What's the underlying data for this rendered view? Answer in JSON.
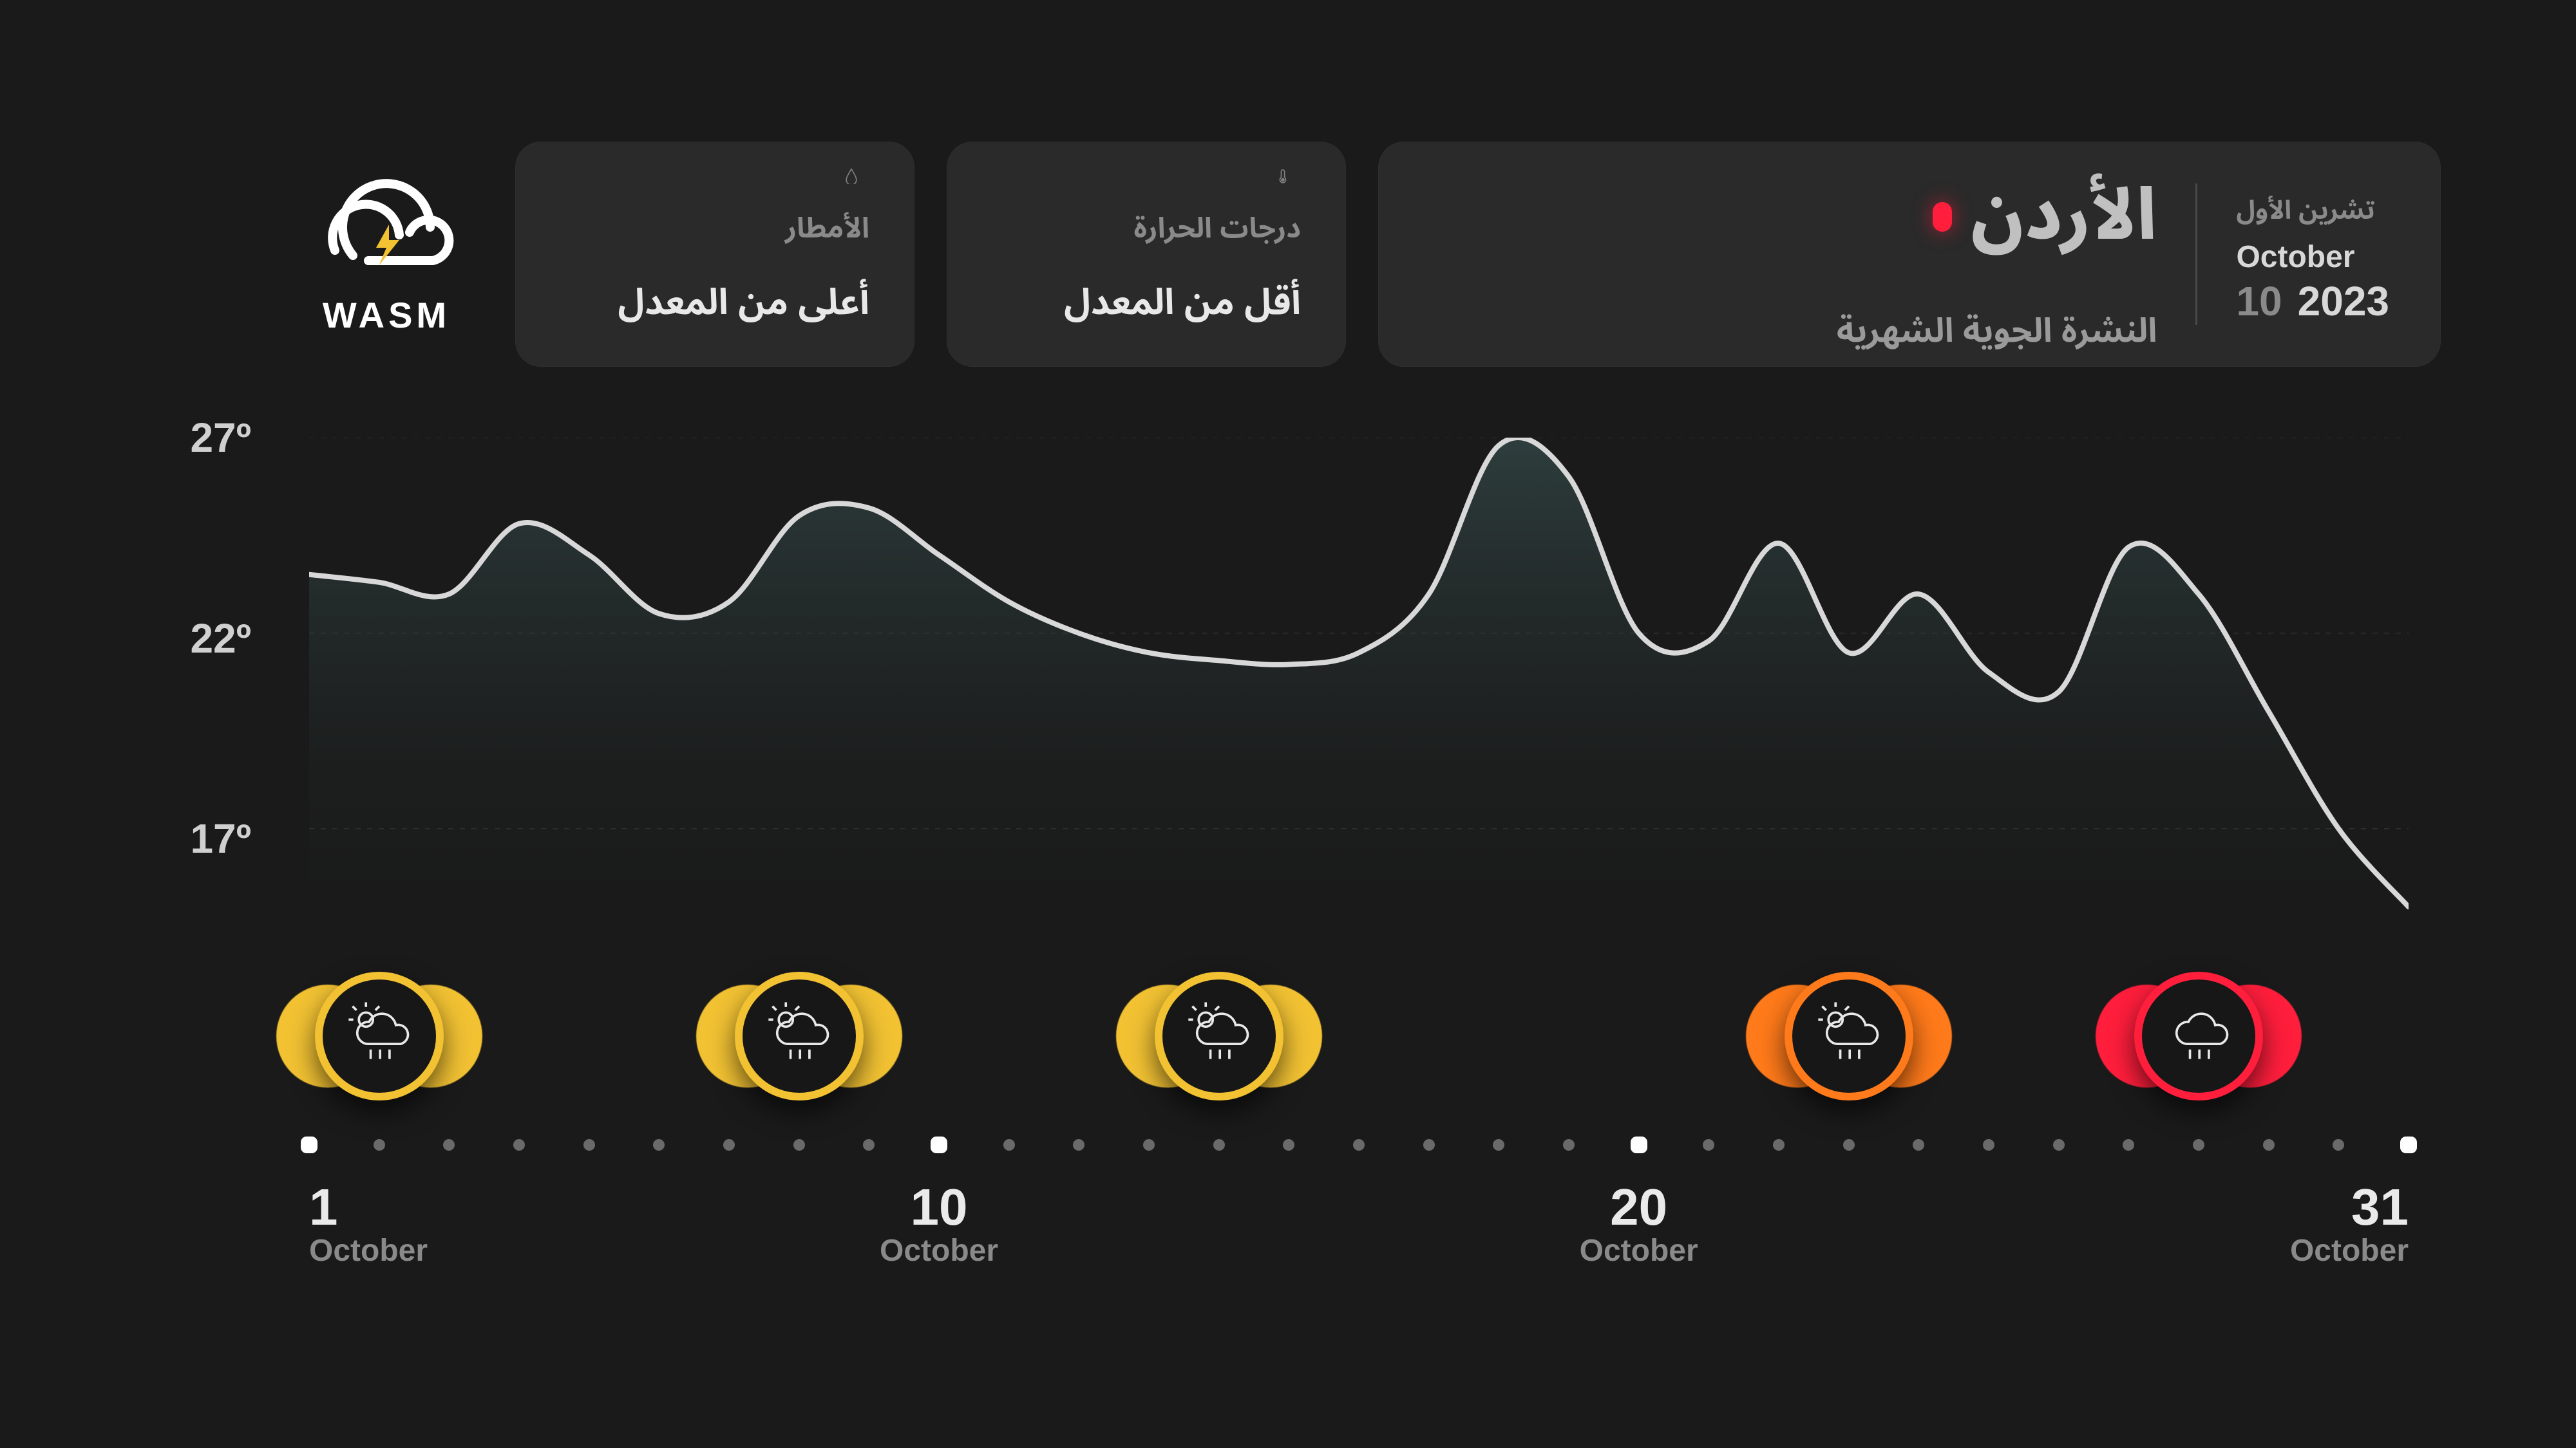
{
  "brand": {
    "name": "WASM"
  },
  "header": {
    "rain": {
      "label": "الأمطار",
      "value": "أعلى من المعدل"
    },
    "temp": {
      "label": "درجات الحرارة",
      "value": "أقل من المعدل"
    },
    "hero": {
      "country": "الأردن",
      "subtitle": "النشرة الجوية الشهرية",
      "month_ar": "تشرين الأول",
      "month_en": "October",
      "month_num": "10",
      "year": "2023"
    }
  },
  "colors": {
    "bg": "#1a1a1a",
    "card": "#2a2a2a",
    "text": "#e8e8e8",
    "muted": "#8a8a8a",
    "grid": "#3a3a3a",
    "line": "#d8d8d8",
    "area_top": "#3e5a5a",
    "area_bottom": "#1a1a1a",
    "accent_dot": "#ff1e3c",
    "badge_yellow": "#f2c233",
    "badge_orange": "#ff7a1a",
    "badge_red": "#ff1e3c"
  },
  "chart": {
    "type": "area-line",
    "y": {
      "min": 14,
      "max": 27,
      "ticks": [
        27,
        22,
        17
      ],
      "tick_labels": [
        "27º",
        "22º",
        "17º"
      ]
    },
    "x": {
      "days": [
        1,
        2,
        3,
        4,
        5,
        6,
        7,
        8,
        9,
        10,
        11,
        12,
        13,
        14,
        15,
        16,
        17,
        18,
        19,
        20,
        21,
        22,
        23,
        24,
        25,
        26,
        27,
        28,
        29,
        30,
        31
      ],
      "major": [
        1,
        10,
        20,
        31
      ],
      "label_days": [
        1,
        10,
        20,
        31
      ],
      "month_label": "October"
    },
    "series": {
      "temp": [
        23.5,
        23.3,
        23.0,
        24.8,
        24.0,
        22.5,
        22.8,
        25.0,
        25.2,
        24.0,
        22.8,
        22.0,
        21.5,
        21.3,
        21.2,
        21.5,
        23.0,
        26.8,
        26.0,
        22.0,
        21.8,
        24.3,
        21.5,
        23.0,
        21.0,
        20.5,
        24.2,
        23.0,
        20.0,
        17.0,
        15.0
      ]
    },
    "line_width": 8,
    "fill_opacity": 0.55
  },
  "badges": [
    {
      "day": 2,
      "color": "#f2c233",
      "icon": "sun-cloud-rain"
    },
    {
      "day": 8,
      "color": "#f2c233",
      "icon": "sun-cloud-rain"
    },
    {
      "day": 14,
      "color": "#f2c233",
      "icon": "sun-cloud-rain"
    },
    {
      "day": 23,
      "color": "#ff7a1a",
      "icon": "sun-cloud-rain"
    },
    {
      "day": 28,
      "color": "#ff1e3c",
      "icon": "cloud-rain"
    }
  ]
}
